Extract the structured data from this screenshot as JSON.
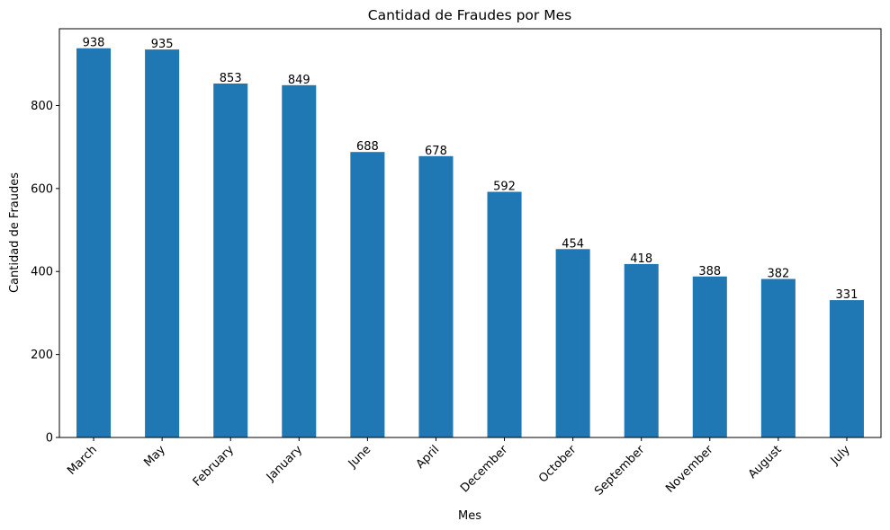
{
  "chart_data": {
    "type": "bar",
    "title": "Cantidad de Fraudes por Mes",
    "xlabel": "Mes",
    "ylabel": "Cantidad de Fraudes",
    "categories": [
      "March",
      "May",
      "February",
      "January",
      "June",
      "April",
      "December",
      "October",
      "September",
      "November",
      "August",
      "July"
    ],
    "values": [
      938,
      935,
      853,
      849,
      688,
      678,
      592,
      454,
      418,
      388,
      382,
      331
    ],
    "data_labels": [
      "938",
      "935",
      "853",
      "849",
      "688",
      "678",
      "592",
      "454",
      "418",
      "388",
      "382",
      "331"
    ],
    "ylim": [
      0,
      985
    ],
    "yticks": [
      0,
      200,
      400,
      600,
      800
    ],
    "ytick_labels": [
      "0",
      "200",
      "400",
      "600",
      "800"
    ],
    "xtick_rotation": 45,
    "grid": false,
    "legend": null,
    "bar_color": "#1f77b4"
  }
}
